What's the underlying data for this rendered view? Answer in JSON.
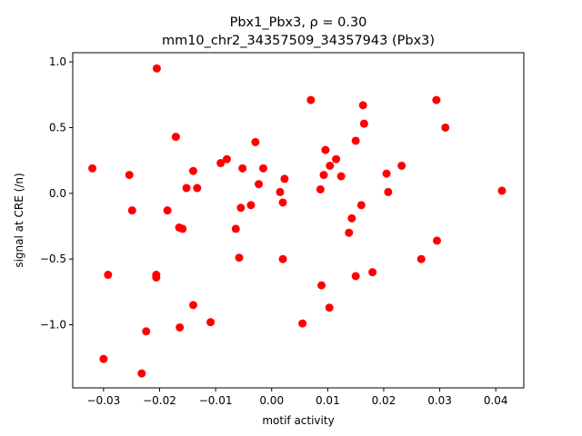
{
  "chart_data": {
    "type": "scatter",
    "title_line1": "Pbx1_Pbx3, ρ = 0.30",
    "title_line2": "mm10_chr2_34357509_34357943 (Pbx3)",
    "xlabel": "motif activity",
    "ylabel": "signal at CRE (/n)",
    "xlim": [
      -0.0355,
      0.045
    ],
    "ylim": [
      -1.48,
      1.07
    ],
    "x_ticks": [
      -0.03,
      -0.02,
      -0.01,
      0.0,
      0.01,
      0.02,
      0.03,
      0.04
    ],
    "x_tick_labels": [
      "−0.03",
      "−0.02",
      "−0.01",
      "0.00",
      "0.01",
      "0.02",
      "0.03",
      "0.04"
    ],
    "y_ticks": [
      -1.0,
      -0.5,
      0.0,
      0.5,
      1.0
    ],
    "y_tick_labels": [
      "−1.0",
      "−0.5",
      "0.0",
      "0.5",
      "1.0"
    ],
    "marker_color": "#ff0000",
    "grid": false,
    "points": [
      {
        "x": -0.032,
        "y": 0.19
      },
      {
        "x": -0.03,
        "y": -1.26
      },
      {
        "x": -0.0292,
        "y": -0.62
      },
      {
        "x": -0.0254,
        "y": 0.14
      },
      {
        "x": -0.0249,
        "y": -0.13
      },
      {
        "x": -0.0232,
        "y": -1.37
      },
      {
        "x": -0.0224,
        "y": -1.05
      },
      {
        "x": -0.0205,
        "y": 0.95
      },
      {
        "x": -0.0206,
        "y": -0.62
      },
      {
        "x": -0.0206,
        "y": -0.64
      },
      {
        "x": -0.0186,
        "y": -0.13
      },
      {
        "x": -0.0171,
        "y": 0.43
      },
      {
        "x": -0.0165,
        "y": -0.26
      },
      {
        "x": -0.0164,
        "y": -1.02
      },
      {
        "x": -0.0159,
        "y": -0.27
      },
      {
        "x": -0.0152,
        "y": 0.04
      },
      {
        "x": -0.014,
        "y": 0.17
      },
      {
        "x": -0.014,
        "y": -0.85
      },
      {
        "x": -0.0133,
        "y": 0.04
      },
      {
        "x": -0.0109,
        "y": -0.98
      },
      {
        "x": -0.0091,
        "y": 0.23
      },
      {
        "x": -0.008,
        "y": 0.26
      },
      {
        "x": -0.0064,
        "y": -0.27
      },
      {
        "x": -0.0058,
        "y": -0.49
      },
      {
        "x": -0.0055,
        "y": -0.11
      },
      {
        "x": -0.0052,
        "y": 0.19
      },
      {
        "x": -0.0037,
        "y": -0.09
      },
      {
        "x": -0.0029,
        "y": 0.39
      },
      {
        "x": -0.0023,
        "y": 0.07
      },
      {
        "x": -0.0015,
        "y": 0.19
      },
      {
        "x": 0.0015,
        "y": 0.01
      },
      {
        "x": 0.002,
        "y": -0.07
      },
      {
        "x": 0.002,
        "y": -0.5
      },
      {
        "x": 0.0023,
        "y": 0.11
      },
      {
        "x": 0.0055,
        "y": -0.99
      },
      {
        "x": 0.007,
        "y": 0.71
      },
      {
        "x": 0.0087,
        "y": 0.03
      },
      {
        "x": 0.0089,
        "y": -0.7
      },
      {
        "x": 0.0093,
        "y": 0.14
      },
      {
        "x": 0.0096,
        "y": 0.33
      },
      {
        "x": 0.0103,
        "y": -0.87
      },
      {
        "x": 0.0104,
        "y": 0.21
      },
      {
        "x": 0.0115,
        "y": 0.26
      },
      {
        "x": 0.0124,
        "y": 0.13
      },
      {
        "x": 0.0138,
        "y": -0.3
      },
      {
        "x": 0.0143,
        "y": -0.19
      },
      {
        "x": 0.015,
        "y": 0.4
      },
      {
        "x": 0.015,
        "y": -0.63
      },
      {
        "x": 0.016,
        "y": -0.09
      },
      {
        "x": 0.0163,
        "y": 0.67
      },
      {
        "x": 0.0165,
        "y": 0.53
      },
      {
        "x": 0.018,
        "y": -0.6
      },
      {
        "x": 0.0205,
        "y": 0.15
      },
      {
        "x": 0.0208,
        "y": 0.01
      },
      {
        "x": 0.0232,
        "y": 0.21
      },
      {
        "x": 0.0267,
        "y": -0.5
      },
      {
        "x": 0.0294,
        "y": 0.71
      },
      {
        "x": 0.0295,
        "y": -0.36
      },
      {
        "x": 0.031,
        "y": 0.5
      },
      {
        "x": 0.0411,
        "y": 0.02
      }
    ]
  }
}
